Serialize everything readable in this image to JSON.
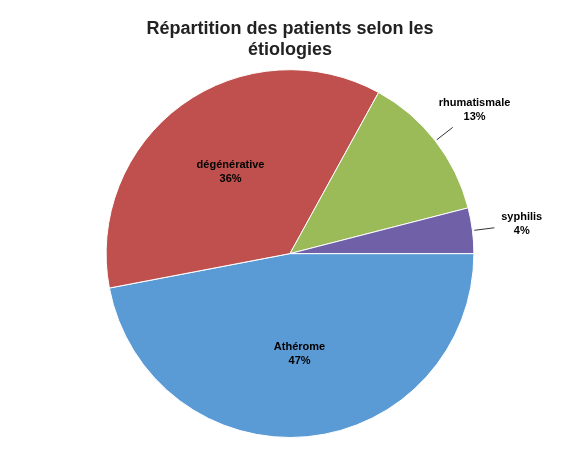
{
  "chart_data": {
    "type": "pie",
    "title": "Répartition des patients selon les\nétiologies",
    "categories": [
      "Athérome",
      "dégénérative",
      "rhumatismale",
      "syphilis"
    ],
    "values": [
      47,
      36,
      13,
      4
    ],
    "value_labels": [
      "47%",
      "36%",
      "13%",
      "4%"
    ],
    "data_labels": true,
    "colors": [
      "#5B9BD5",
      "#C0504D",
      "#9BBB59",
      "#7060A8"
    ]
  }
}
